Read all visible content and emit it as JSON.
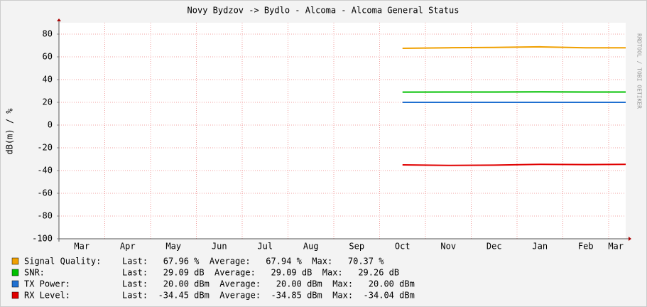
{
  "chart_data": {
    "type": "line",
    "title": "Novy Bydzov -> Bydlo - Alcoma - Alcoma General Status",
    "y_label": "dB(m) / %",
    "watermark": "RRDTOOL / TOBI OETIKER",
    "categories": [
      "Mar",
      "Apr",
      "May",
      "Jun",
      "Jul",
      "Aug",
      "Sep",
      "Oct",
      "Nov",
      "Dec",
      "Jan",
      "Feb",
      "Mar"
    ],
    "ylim": [
      -100,
      90
    ],
    "yticks": [
      -100,
      -80,
      -60,
      -40,
      -20,
      0,
      20,
      40,
      60,
      80
    ],
    "grid": true,
    "series": [
      {
        "name": "Signal Quality:",
        "color": "#f0a000",
        "values": [
          null,
          null,
          null,
          null,
          null,
          null,
          null,
          67.5,
          68,
          68.3,
          68.8,
          68,
          68
        ],
        "stats": "Last:   67.96 %  Average:   67.94 %  Max:   70.37 %"
      },
      {
        "name": "SNR:",
        "color": "#00c000",
        "values": [
          null,
          null,
          null,
          null,
          null,
          null,
          null,
          29,
          29.1,
          29.1,
          29.2,
          29.1,
          29.1
        ],
        "stats": "Last:   29.09 dB  Average:   29.09 dB  Max:   29.26 dB"
      },
      {
        "name": "TX Power:",
        "color": "#2070d0",
        "values": [
          null,
          null,
          null,
          null,
          null,
          null,
          null,
          20,
          20,
          20,
          20,
          20,
          20
        ],
        "stats": "Last:   20.00 dBm  Average:   20.00 dBm  Max:   20.00 dBm"
      },
      {
        "name": "RX Level:",
        "color": "#e00000",
        "values": [
          null,
          null,
          null,
          null,
          null,
          null,
          null,
          -35,
          -35.5,
          -35.2,
          -34.5,
          -34.8,
          -34.5
        ],
        "stats": "Last:  -34.45 dBm  Average:  -34.85 dBm  Max:  -34.04 dBm"
      }
    ]
  }
}
